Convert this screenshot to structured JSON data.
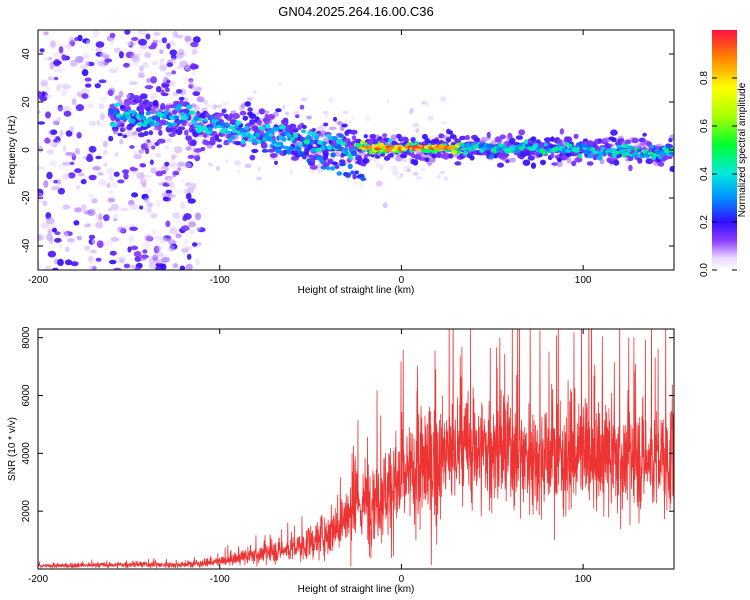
{
  "title": "GN04.2025.264.16.00.C36",
  "chart_data": [
    {
      "type": "heatmap",
      "xlabel": "Height of straight line (km)",
      "ylabel": "Frequency (Hz)",
      "xlim": [
        -200,
        150
      ],
      "ylim": [
        -50,
        50
      ],
      "xticks": [
        -200,
        -100,
        0,
        100
      ],
      "yticks": [
        -40,
        -20,
        0,
        20,
        40
      ],
      "colorbar": {
        "label": "Normalized spectral amplitude",
        "range": [
          0,
          1
        ],
        "ticks": [
          0.0,
          0.2,
          0.4,
          0.6,
          0.8
        ]
      },
      "ridge": {
        "description_points_km_hz": [
          [
            -150,
            14
          ],
          [
            -120,
            14
          ],
          [
            -100,
            9
          ],
          [
            -80,
            7
          ],
          [
            -60,
            5
          ],
          [
            -40,
            2
          ],
          [
            -25,
            1
          ],
          [
            0,
            1
          ],
          [
            30,
            1
          ],
          [
            60,
            1
          ],
          [
            100,
            0
          ],
          [
            150,
            -1
          ]
        ],
        "noise_region_km": [
          -200,
          -110
        ]
      }
    },
    {
      "type": "line",
      "xlabel": "Height of straight line (km)",
      "ylabel": "SNR (10 * v/v)",
      "xlim": [
        -200,
        150
      ],
      "ylim": [
        0,
        8300
      ],
      "xticks": [
        -200,
        -100,
        0,
        100
      ],
      "yticks": [
        2000,
        4000,
        6000,
        8000
      ],
      "color": "#ee3333",
      "envelope": {
        "x": [
          -200,
          -150,
          -120,
          -100,
          -80,
          -60,
          -50,
          -40,
          -30,
          -20,
          -15,
          -10,
          0,
          10,
          20,
          30,
          40,
          60,
          80,
          100,
          120,
          150
        ],
        "y": [
          100,
          150,
          150,
          250,
          500,
          700,
          900,
          1300,
          1800,
          2300,
          2500,
          2700,
          3000,
          3400,
          3800,
          4000,
          4200,
          4000,
          3900,
          4000,
          3800,
          3800
        ]
      }
    }
  ]
}
